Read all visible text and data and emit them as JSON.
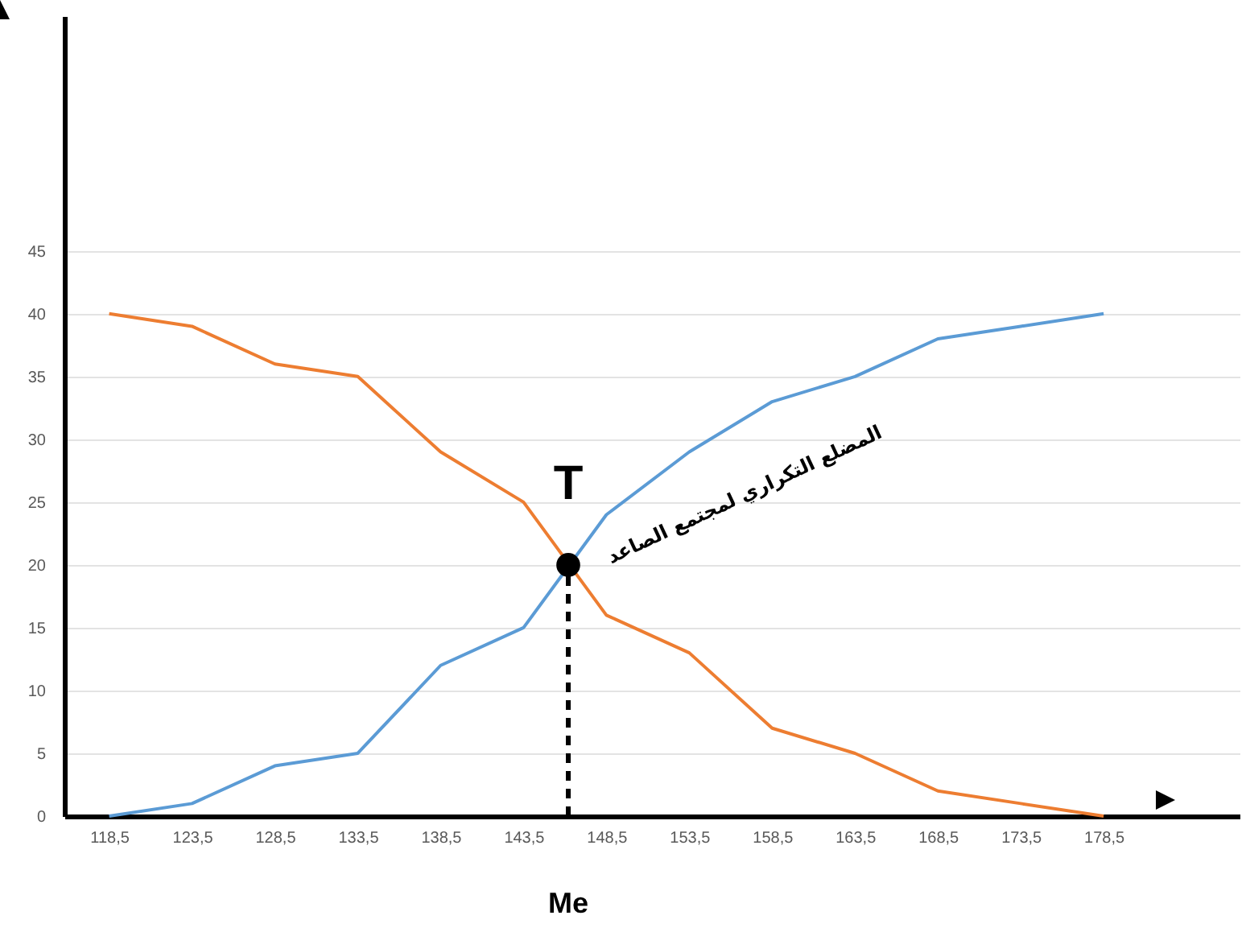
{
  "chart_data": {
    "type": "line",
    "x": [
      118.5,
      123.5,
      128.5,
      133.5,
      138.5,
      143.5,
      148.5,
      153.5,
      158.5,
      163.5,
      168.5,
      173.5,
      178.5
    ],
    "series": [
      {
        "name": "المضلع التكراري لمجتمع الصاعد",
        "color": "#5b9bd5",
        "values": [
          0,
          1,
          4,
          5,
          12,
          15,
          24,
          29,
          33,
          35,
          38,
          39,
          40
        ]
      },
      {
        "color": "#ed7d31",
        "values": [
          40,
          39,
          36,
          35,
          29,
          25,
          16,
          13,
          7,
          5,
          2,
          1,
          0
        ]
      },
      {
        "type": "scatter",
        "name": "T",
        "color": "#000000",
        "x": [
          146.2
        ],
        "values": [
          20
        ]
      }
    ],
    "xlim": [
      115.8,
      186.7
    ],
    "xticks": [
      {
        "value": 118.5,
        "label": "118,5"
      },
      {
        "value": 123.5,
        "label": "123,5"
      },
      {
        "value": 128.5,
        "label": "128,5"
      },
      {
        "value": 133.5,
        "label": "133,5"
      },
      {
        "value": 138.5,
        "label": "138,5"
      },
      {
        "value": 143.5,
        "label": "143,5"
      },
      {
        "value": 148.5,
        "label": "148,5"
      },
      {
        "value": 153.5,
        "label": "153,5"
      },
      {
        "value": 158.5,
        "label": "158,5"
      },
      {
        "value": 163.5,
        "label": "163,5"
      },
      {
        "value": 168.5,
        "label": "168,5"
      },
      {
        "value": 173.5,
        "label": "173,5"
      },
      {
        "value": 178.5,
        "label": "178,5"
      }
    ],
    "ylim": [
      0,
      63.7
    ],
    "yticks": [
      0,
      5,
      10,
      15,
      20,
      25,
      30,
      35,
      40,
      45
    ],
    "grid": "y",
    "ref_lines": [
      {
        "axis": "x",
        "value": 146.2,
        "label": "Me",
        "line_style": "dashed",
        "color": "#000000"
      }
    ]
  }
}
